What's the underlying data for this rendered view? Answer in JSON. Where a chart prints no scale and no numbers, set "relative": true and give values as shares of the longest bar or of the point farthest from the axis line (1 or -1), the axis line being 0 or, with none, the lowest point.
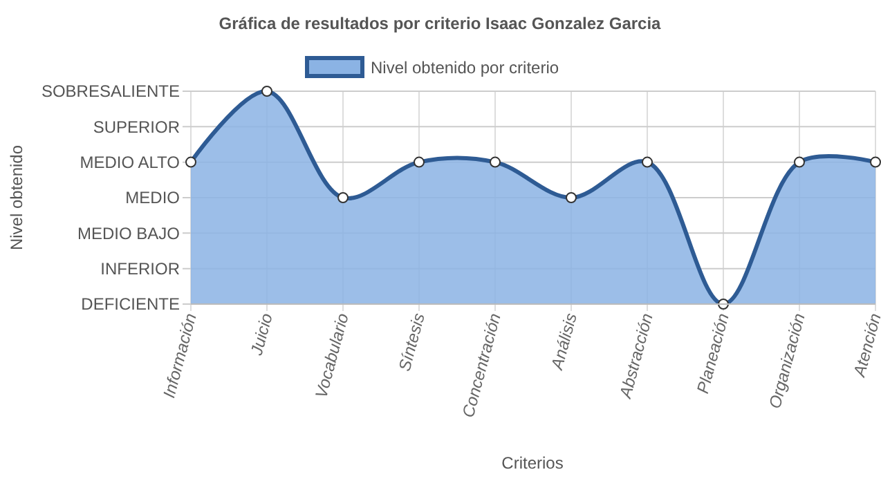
{
  "chart_data": {
    "type": "area",
    "title": "Gráfica de resultados por criterio Isaac Gonzalez Garcia",
    "xlabel": "Criterios",
    "categories": [
      "Información",
      "Juicio",
      "Vocabulario",
      "Síntesis",
      "Concentración",
      "Análisis",
      "Abstracción",
      "Planeación",
      "Organización",
      "Atención"
    ],
    "series": [
      {
        "name": "Nivel obtenido por criterio",
        "color": "#2e5b94",
        "values": [
          0.667,
          1,
          0.5,
          0.667,
          0.667,
          0.5,
          0.667,
          0,
          0.667,
          0.667
        ]
      }
    ],
    "relative": true,
    "annotations": [
      "DEFICIENTE",
      "INFERIOR",
      "MEDIO BAJO",
      "MEDIO",
      "MEDIO ALTO",
      "SUPERIOR",
      "SOBRESALIENTE",
      "Nivel obtenido"
    ],
    "grid": true,
    "legend": "top",
    "marker": "circle",
    "line_style": "solid"
  }
}
